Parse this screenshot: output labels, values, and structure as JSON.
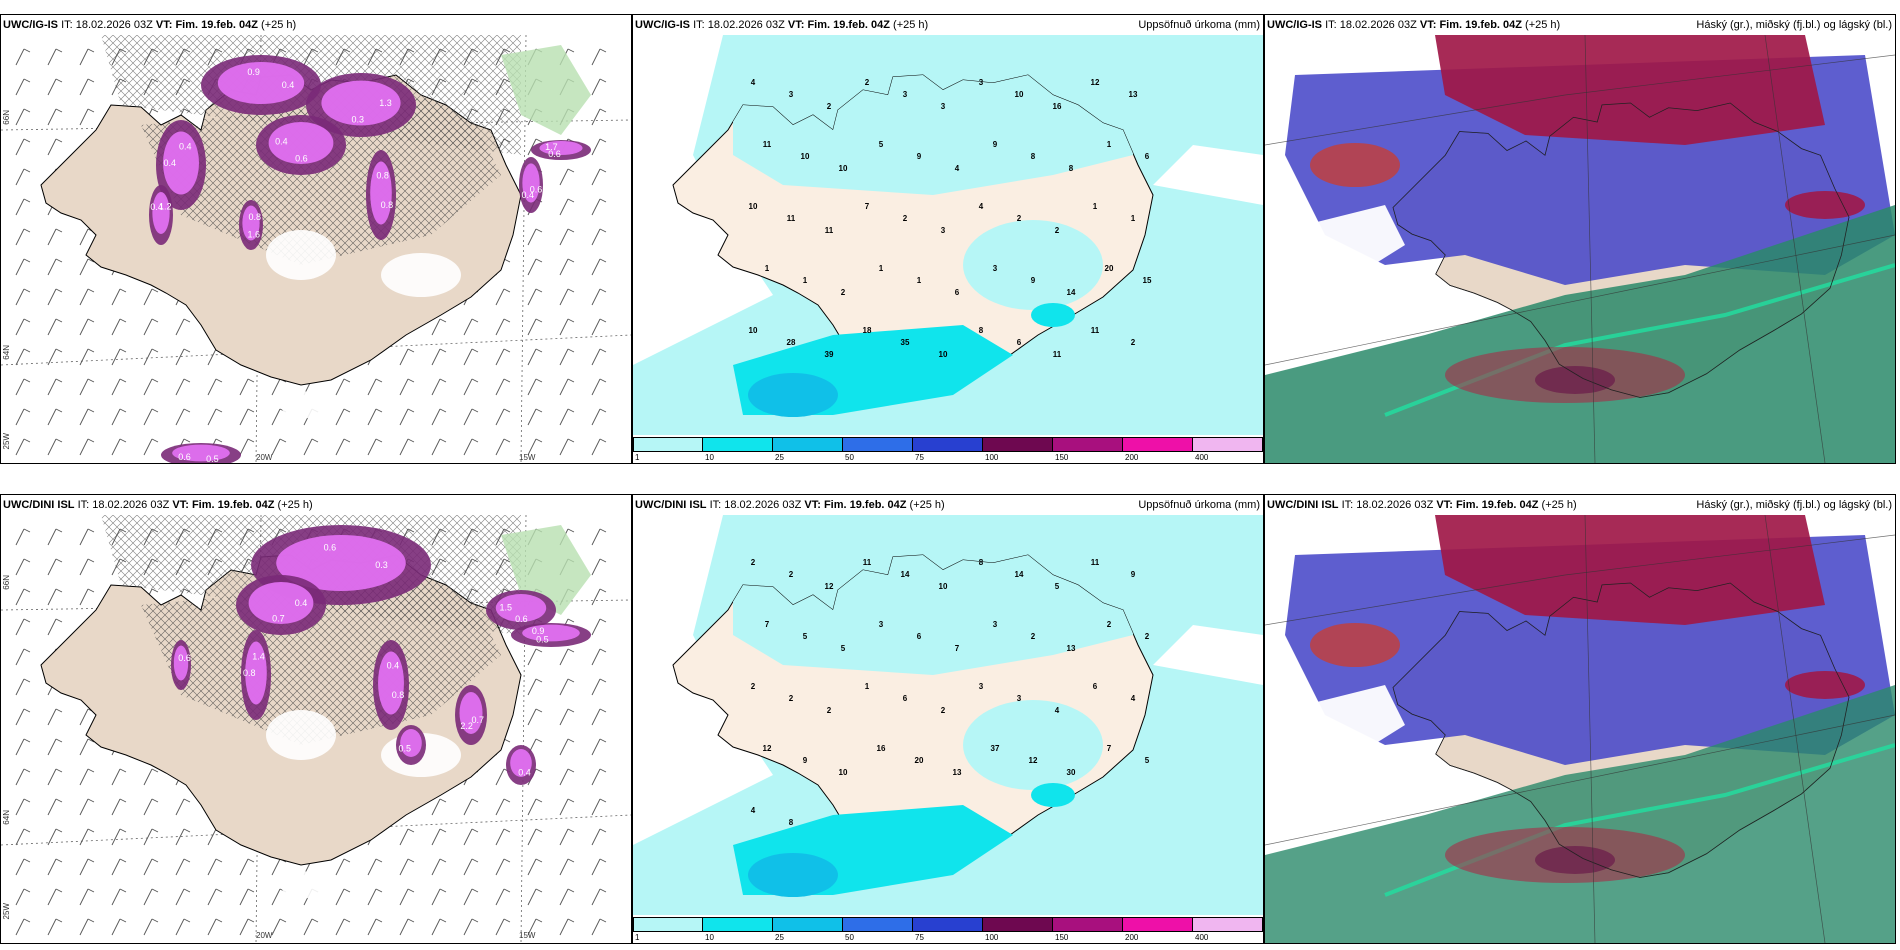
{
  "rows": [
    {
      "model": "UWC/IG-IS",
      "it_label": "IT:",
      "it": "18.02.2026 03Z",
      "vt_label": "VT:",
      "vt": "Fim. 19.feb. 04Z",
      "lead": "(+25 h)",
      "precip_values": [
        "4",
        "3",
        "2",
        "2",
        "3",
        "3",
        "3",
        "10",
        "16",
        "12",
        "13",
        "11",
        "10",
        "10",
        "5",
        "9",
        "4",
        "9",
        "8",
        "8",
        "1",
        "6",
        "10",
        "11",
        "11",
        "7",
        "2",
        "3",
        "4",
        "2",
        "2",
        "1",
        "1",
        "1",
        "1",
        "2",
        "1",
        "1",
        "6",
        "3",
        "9",
        "14",
        "20",
        "15",
        "10",
        "28",
        "39",
        "18",
        "35",
        "10",
        "8",
        "6",
        "11",
        "11",
        "2"
      ],
      "precip_values_dini_like": false
    },
    {
      "model": "UWC/DINI ISL",
      "it_label": "IT:",
      "it": "18.02.2026 03Z",
      "vt_label": "VT:",
      "vt": "Fim. 19.feb. 04Z",
      "lead": "(+25 h)",
      "precip_values": [
        "2",
        "2",
        "12",
        "11",
        "14",
        "10",
        "8",
        "14",
        "5",
        "11",
        "9",
        "7",
        "5",
        "5",
        "3",
        "6",
        "7",
        "3",
        "2",
        "13",
        "2",
        "2",
        "2",
        "2",
        "2",
        "1",
        "6",
        "2",
        "3",
        "3",
        "4",
        "6",
        "4",
        "12",
        "9",
        "10",
        "16",
        "20",
        "13",
        "37",
        "12",
        "30",
        "7",
        "5",
        "4",
        "8"
      ],
      "precip_values_dini_like": true
    }
  ],
  "precip_title": "Uppsöfnuð úrkoma (mm)",
  "cloud_title": "Háský (gr.), miðský (fj.bl.) og lágský (bl.)",
  "lat_labels": [
    "66N",
    "64N",
    "25W"
  ],
  "lon_labels": [
    "20W",
    "15W"
  ],
  "snow_labels_top": [
    "0.4",
    "0.3",
    "0.4",
    "0.4",
    "0.8",
    "0.4",
    "1.7",
    "1.2",
    "1.6",
    "0.6",
    "0.9",
    "1.3",
    "0.6",
    "0.4",
    "0.8",
    "0.6",
    "0.6",
    "0.4",
    "0.8",
    "0.5"
  ],
  "snow_labels_bottom": [
    "0.3",
    "0.7",
    "1.5",
    "1.4",
    "0.8",
    "2.2",
    "0.9",
    "0.6",
    "0.4",
    "0.5",
    "0.6",
    "0.4",
    "0.6",
    "0.8",
    "0.4",
    "0.7",
    "0.5"
  ],
  "colorbar": {
    "ticks": [
      "1",
      "10",
      "25",
      "50",
      "75",
      "100",
      "150",
      "200",
      "400"
    ],
    "colors": [
      "#b6f6f6",
      "#10e4ec",
      "#10c0e8",
      "#2e6ee8",
      "#2840d0",
      "#6e0850",
      "#a8107e",
      "#ee10a8",
      "#f0b6f0"
    ]
  },
  "colors": {
    "land": "#e8d8c8",
    "land_precip_panel": "#faeee2",
    "precip_light": "#b6f6f6",
    "precip_mid": "#10e4ec",
    "precip_high": "#10c0e8",
    "snow_light": "#e070f0",
    "snow_dark": "#7a2a78",
    "high_cloud": "#a01848",
    "mid_cloud": "#4848c8",
    "low_cloud": "#2a8a6a",
    "low_cloud_edge": "#20e0a0"
  }
}
